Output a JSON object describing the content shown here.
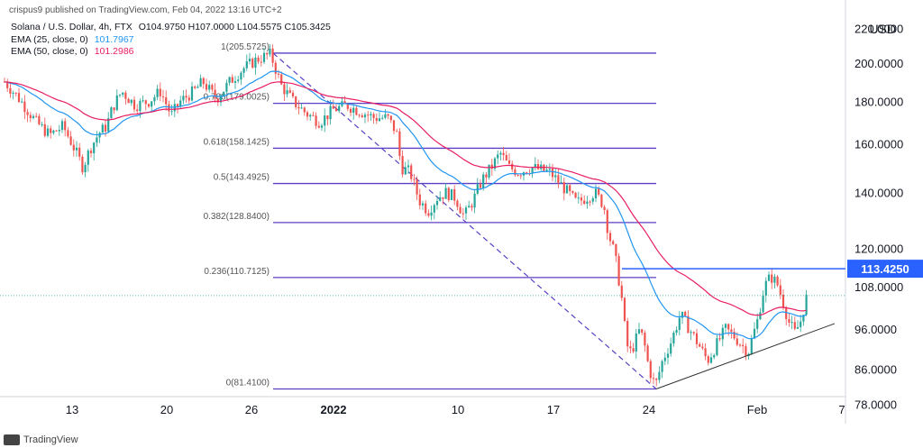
{
  "header": {
    "published": "crispus9 published on TradingView.com, Feb 04, 2022 13:16 UTC+2"
  },
  "legend": {
    "symbol": "Solana / U.S. Dollar, 4h, FTX",
    "ohlc": "O104.9750 H107.0000 L104.5575 C105.3425",
    "ema25_label": "EMA (25, close, 0)",
    "ema25_value": "101.7967",
    "ema50_label": "EMA (50, close, 0)",
    "ema50_value": "101.2986"
  },
  "currency": "USD",
  "footer": {
    "brand": "TradingView"
  },
  "colors": {
    "up": "#26a69a",
    "down": "#ef5350",
    "ema25": "#2196f3",
    "ema50": "#e91e63",
    "fib": "#5b3fc4",
    "resistance": "#2962ff",
    "price_tag": "#2962ff"
  },
  "chart_data": {
    "type": "candlestick",
    "x_ticks": [
      "13",
      "20",
      "26",
      "2022",
      "10",
      "17",
      "24",
      "Feb",
      "7"
    ],
    "y_ticks": [
      "220.0000",
      "200.0000",
      "180.0000",
      "160.0000",
      "140.0000",
      "120.0000",
      "108.0000",
      "96.0000",
      "86.0000",
      "78.0000"
    ],
    "ylim": [
      72,
      225
    ],
    "y_scale": "log",
    "fib_levels": [
      {
        "label": "1(205.5725)",
        "value": 205.5725
      },
      {
        "label": "0.786(179.0025)",
        "value": 179.0025
      },
      {
        "label": "0.618(158.1425)",
        "value": 158.1425
      },
      {
        "label": "0.5(143.4925)",
        "value": 143.4925
      },
      {
        "label": "0.382(128.8400)",
        "value": 128.84
      },
      {
        "label": "0.236(110.7125)",
        "value": 110.7125
      },
      {
        "label": "0(81.4100)",
        "value": 81.41
      }
    ],
    "resistance": {
      "label": "113.4250",
      "value": 113.425
    },
    "current_price": 105.3425,
    "ema25_last": 101.7967,
    "ema50_last": 101.2986
  }
}
